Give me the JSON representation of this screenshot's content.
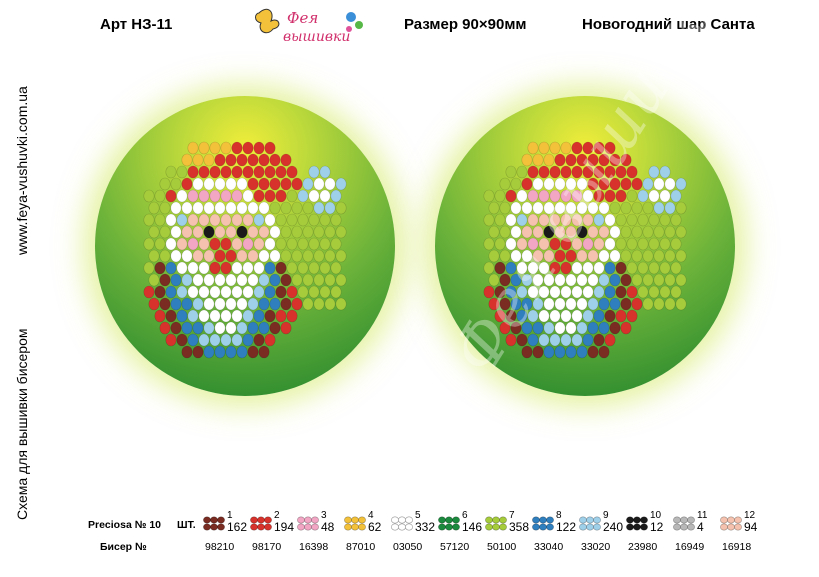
{
  "header": {
    "article": "Арт НЗ-11",
    "size": "Размер 90×90мм",
    "name": "Новогодний шар Санта",
    "logo_text": "Фея вышивки"
  },
  "side": {
    "website": "www.feya-vushuvki.com.ua",
    "scheme": "Схема для вышивки бисером"
  },
  "watermark": "Фея вышивки",
  "legend": {
    "preciosa_label": "Preciosa № 10",
    "count_label": "ШТ.",
    "bead_label": "Бисер №",
    "items": [
      {
        "num": "1",
        "count": "162",
        "code": "98210",
        "color": "#7a2b22"
      },
      {
        "num": "2",
        "count": "194",
        "code": "98170",
        "color": "#d8322c"
      },
      {
        "num": "3",
        "count": "48",
        "code": "16398",
        "color": "#f2a6c4"
      },
      {
        "num": "4",
        "count": "62",
        "code": "87010",
        "color": "#f3c23a"
      },
      {
        "num": "5",
        "count": "332",
        "code": "03050",
        "color": "#ffffff"
      },
      {
        "num": "6",
        "count": "146",
        "code": "57120",
        "color": "#1c8a3e"
      },
      {
        "num": "7",
        "count": "358",
        "code": "50100",
        "color": "#a6cc3c"
      },
      {
        "num": "8",
        "count": "122",
        "code": "33040",
        "color": "#2f7fbf"
      },
      {
        "num": "9",
        "count": "240",
        "code": "33020",
        "color": "#9fd0ea"
      },
      {
        "num": "10",
        "count": "12",
        "code": "23980",
        "color": "#1a1a1a"
      },
      {
        "num": "11",
        "count": "4",
        "code": "16949",
        "color": "#b8b8b8"
      },
      {
        "num": "12",
        "count": "94",
        "code": "16918",
        "color": "#f4c2ae"
      }
    ]
  }
}
